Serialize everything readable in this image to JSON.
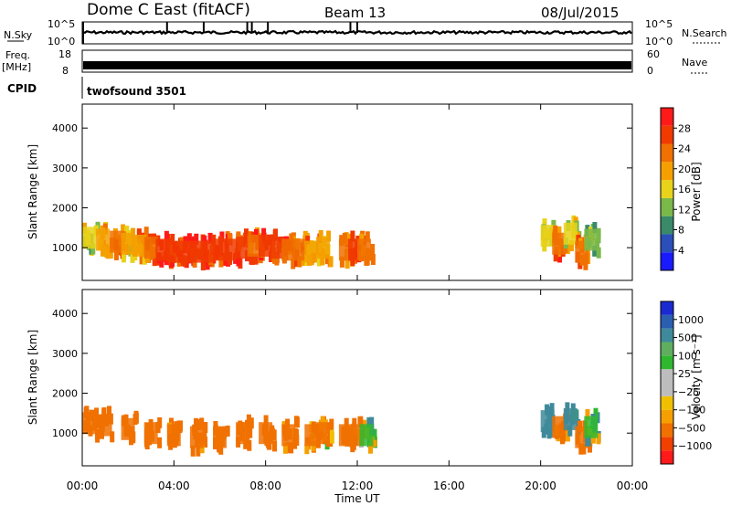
{
  "header": {
    "title": "Dome C East (fitACF)",
    "beam": "Beam 13",
    "date": "08/Jul/2015"
  },
  "strips": {
    "nsky_label": "N.Sky",
    "nsky_ticks": [
      "10^5",
      "10^0"
    ],
    "nsearch_label": "N.Search",
    "nsearch_ticks": [
      "10^5",
      "10^0"
    ],
    "freq_label": "Freq.",
    "freq_unit": "[MHz]",
    "freq_ticks": [
      "18",
      "8"
    ],
    "nave_label": "Nave",
    "nave_ticks": [
      "60",
      "0"
    ],
    "cpid_label": "CPID",
    "cpid_value": "twofsound 3501"
  },
  "colors": {
    "power_scale": [
      "#1a1aff",
      "#2a4fb8",
      "#3a8a6a",
      "#7ab84a",
      "#e8d21a",
      "#f5a000",
      "#f07000",
      "#f03a00",
      "#ff1a1a"
    ],
    "velocity_scale": [
      "#ff1a1a",
      "#f04000",
      "#f07000",
      "#f5a000",
      "#f0c000",
      "#bdbdbd",
      "#bdbdbd",
      "#2fb82f",
      "#5fae5f",
      "#3f8a9a",
      "#2a5fb0",
      "#1a2ad0"
    ]
  },
  "chart_data": [
    {
      "type": "heatmap",
      "panel": "power",
      "ylabel": "Slant Range [km]",
      "xlim": [
        "00:00",
        "24:00"
      ],
      "ylim": [
        180,
        4600
      ],
      "yticks": [
        "1000",
        "2000",
        "3000",
        "4000"
      ],
      "colorbar_label": "Power [dB]",
      "colorbar_ticks": [
        "4",
        "8",
        "12",
        "16",
        "20",
        "24",
        "28"
      ],
      "clim": [
        0,
        30
      ],
      "series": [
        {
          "name": "main",
          "x": [
            0.3,
            0.9,
            1.5,
            2.0,
            2.5,
            3.0,
            3.5,
            4.0,
            4.5,
            5.0,
            5.5,
            6.0,
            6.5,
            7.0,
            7.5,
            8.0,
            8.5,
            9.0,
            9.5,
            10.0,
            10.5
          ],
          "range_center": [
            1250,
            1200,
            1150,
            1100,
            1050,
            1000,
            950,
            900,
            900,
            900,
            900,
            950,
            950,
            1000,
            1050,
            1050,
            1000,
            950,
            950,
            900,
            1000
          ],
          "power": [
            14,
            20,
            22,
            18,
            20,
            24,
            26,
            28,
            28,
            28,
            27,
            28,
            26,
            28,
            24,
            26,
            26,
            24,
            22,
            20,
            18
          ]
        },
        {
          "name": "noon",
          "x": [
            11.5,
            11.9,
            12.3
          ],
          "range_center": [
            950,
            950,
            950
          ],
          "power": [
            22,
            28,
            22
          ]
        },
        {
          "name": "evening",
          "x": [
            20.3,
            20.8,
            21.3,
            21.8,
            22.2
          ],
          "range_center": [
            1300,
            1100,
            1350,
            900,
            1200
          ],
          "power": [
            14,
            24,
            16,
            22,
            12
          ]
        }
      ]
    },
    {
      "type": "heatmap",
      "panel": "velocity",
      "ylabel": "Slant Range [km]",
      "xlabel": "Time UT",
      "xticks": [
        "00:00",
        "04:00",
        "08:00",
        "12:00",
        "16:00",
        "20:00",
        "00:00"
      ],
      "ylim": [
        180,
        4600
      ],
      "yticks": [
        "1000",
        "2000",
        "3000",
        "4000"
      ],
      "colorbar_label": "Velocity [m s⁻¹]",
      "colorbar_ticks": [
        "1000",
        "500",
        "100",
        "25",
        "−25",
        "−100",
        "−500",
        "−1000"
      ],
      "series": [
        {
          "name": "main",
          "x": [
            0.3,
            1.0,
            2.0,
            3.0,
            4.0,
            5.0,
            6.0,
            7.0,
            8.0,
            9.0,
            10.0,
            10.5
          ],
          "range_center": [
            1250,
            1200,
            1100,
            1000,
            950,
            900,
            900,
            1000,
            1000,
            950,
            950,
            1000
          ],
          "velocity": [
            -300,
            -250,
            -200,
            -250,
            -200,
            -150,
            -250,
            -300,
            -250,
            -200,
            -150,
            -100
          ]
        },
        {
          "name": "noon",
          "x": [
            11.5,
            12.0,
            12.4
          ],
          "range_center": [
            950,
            950,
            950
          ],
          "velocity": [
            -300,
            -100,
            60
          ]
        },
        {
          "name": "evening",
          "x": [
            20.3,
            20.8,
            21.3,
            21.8,
            22.2
          ],
          "range_center": [
            1300,
            1150,
            1350,
            900,
            1150
          ],
          "velocity": [
            300,
            -200,
            200,
            -300,
            50
          ]
        }
      ]
    }
  ]
}
